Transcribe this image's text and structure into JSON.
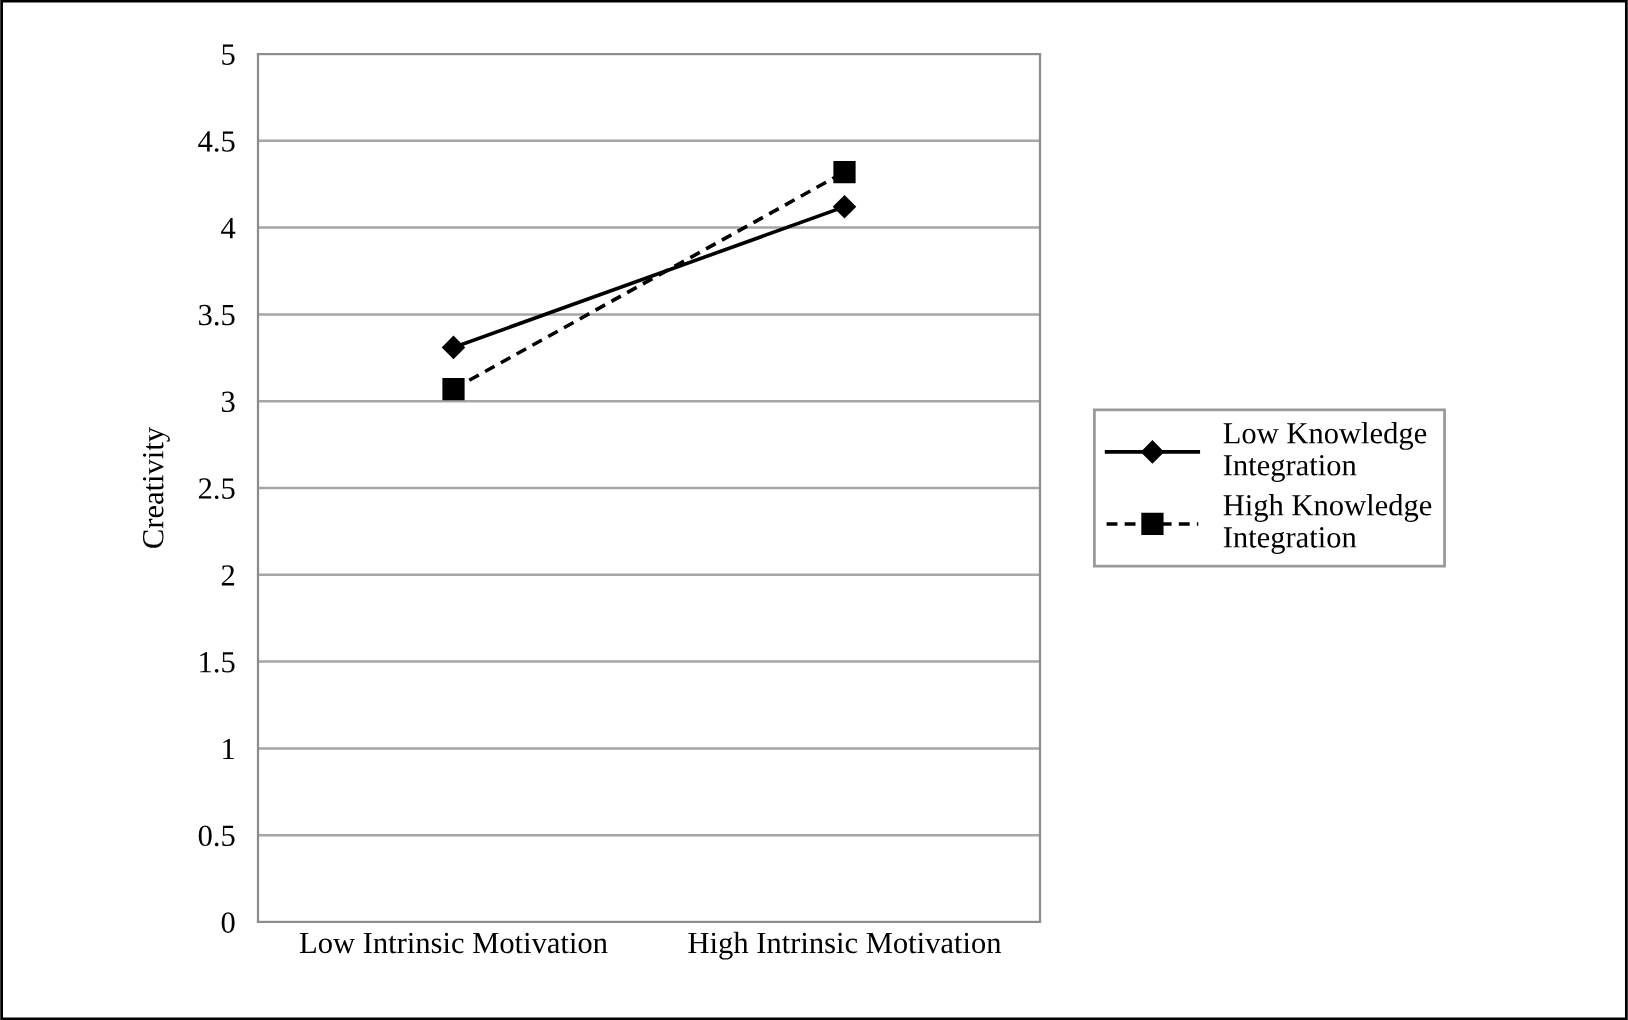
{
  "chart_data": {
    "type": "line",
    "ylabel": "Creativity",
    "categories": [
      "Low Intrinsic Motivation",
      "High Intrinsic Motivation"
    ],
    "series": [
      {
        "name": "Low Knowledge\nIntegration",
        "color": "#000000",
        "values": [
          3.31,
          4.12
        ],
        "marker": "diamond",
        "line_style": "solid"
      },
      {
        "name": "High Knowledge\nIntegration",
        "color": "#000000",
        "values": [
          3.07,
          4.32
        ],
        "marker": "square",
        "line_style": "dashed"
      }
    ],
    "ylim": [
      0,
      5
    ],
    "yticks": [
      0,
      0.5,
      1,
      1.5,
      2,
      2.5,
      3,
      3.5,
      4,
      4.5,
      5
    ],
    "grid": "y",
    "legend": "right"
  }
}
